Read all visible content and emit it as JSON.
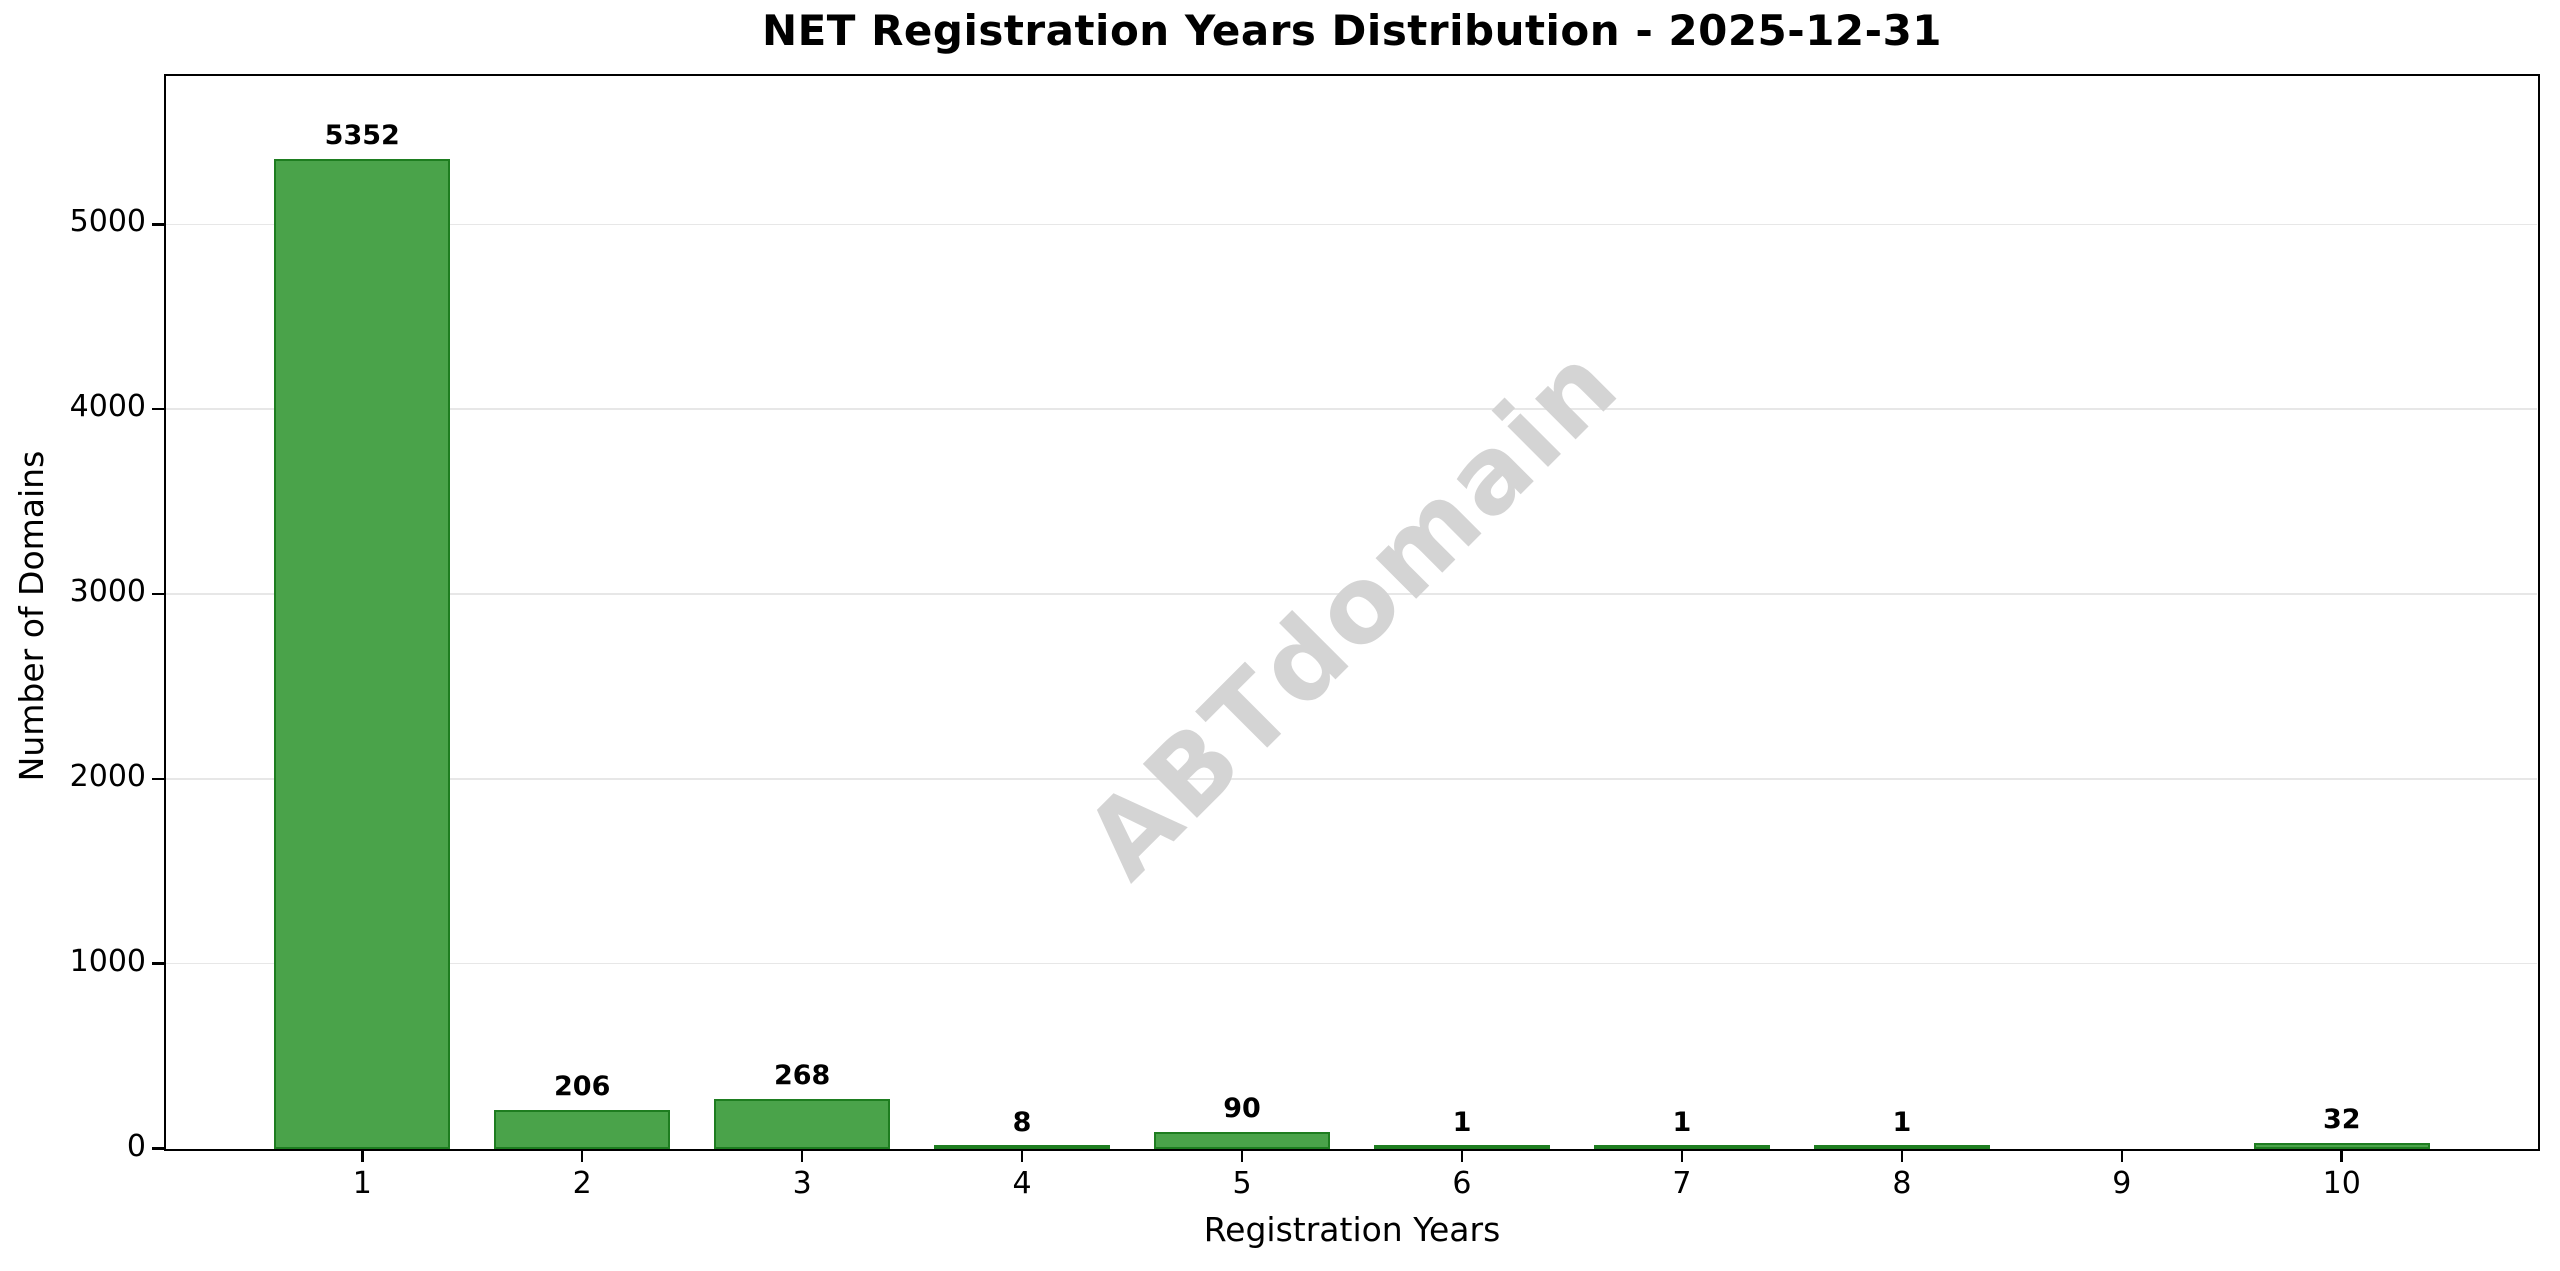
{
  "title": "NET Registration Years Distribution - 2025-12-31",
  "watermark": {
    "text": "ABTdomain",
    "color": "#d4d4d4",
    "rotation_deg": -45
  },
  "chart_data": {
    "type": "bar",
    "title": "NET Registration Years Distribution - 2025-12-31",
    "xlabel": "Registration Years",
    "ylabel": "Number of Domains",
    "categories": [
      "1",
      "2",
      "3",
      "4",
      "5",
      "6",
      "7",
      "8",
      "9",
      "10"
    ],
    "values": [
      5352,
      206,
      268,
      8,
      90,
      1,
      1,
      1,
      0,
      32
    ],
    "bar_labels": [
      "5352",
      "206",
      "268",
      "8",
      "90",
      "1",
      "1",
      "1",
      "",
      "32"
    ],
    "yticks": [
      0,
      1000,
      2000,
      3000,
      4000,
      5000
    ],
    "ytick_labels": [
      "0",
      "1000",
      "2000",
      "3000",
      "4000",
      "5000"
    ],
    "ylim": [
      0,
      5800
    ],
    "xlim": [
      0.11,
      10.89
    ],
    "grid": "horizontal-only",
    "grid_color": "#e7e7e7",
    "legend": "none",
    "bar_color": "#4AA34A",
    "bar_edge_color": "#1E7D20",
    "background_color": "#ffffff"
  }
}
